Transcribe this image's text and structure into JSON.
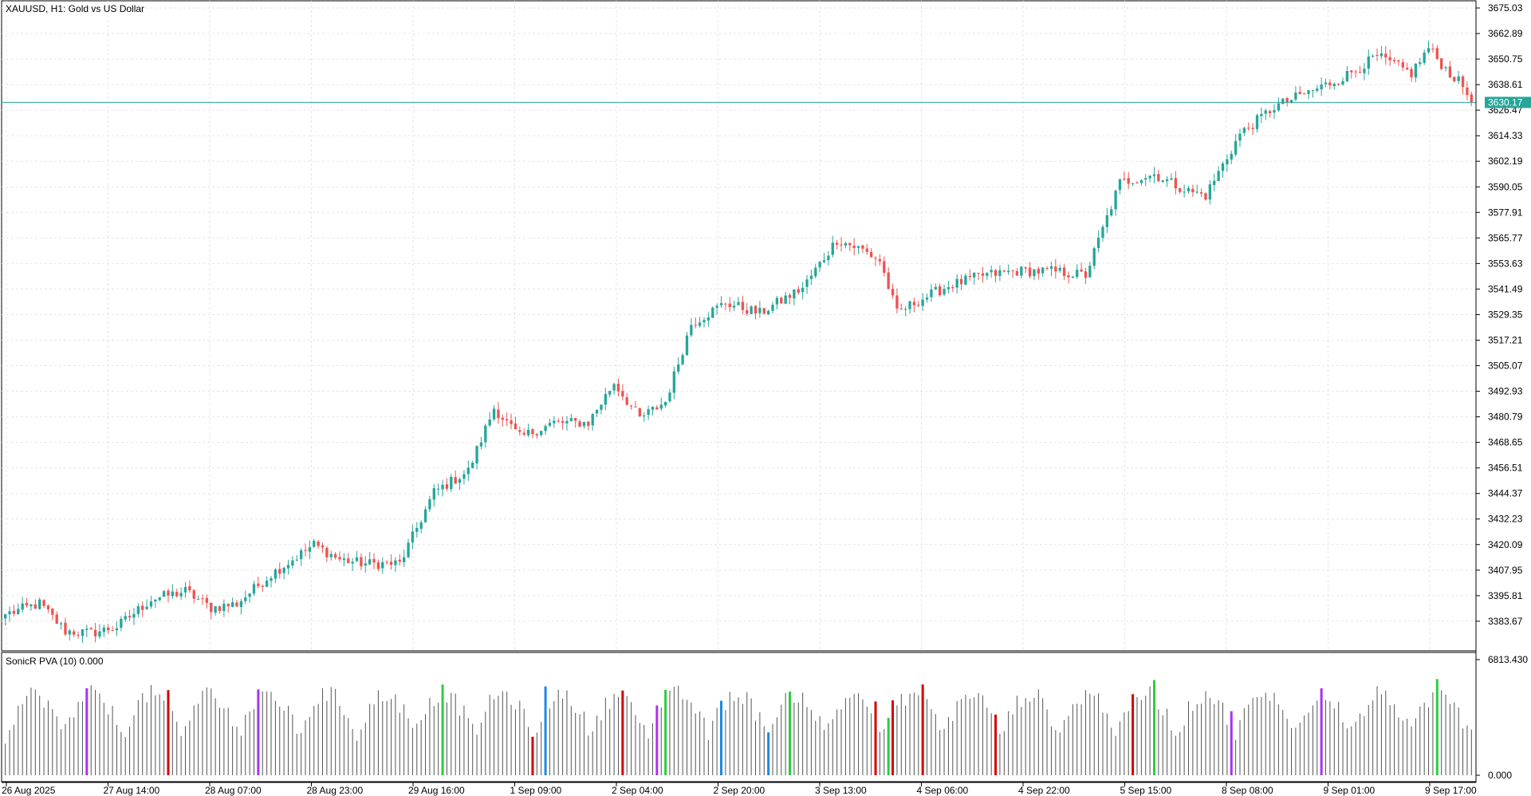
{
  "window": {
    "symbol_label": "XAUUSD, H1:  Gold vs US Dollar",
    "indicator_label": "SonicR PVA (10) 0.000"
  },
  "colors": {
    "bull": "#26a69a",
    "bear": "#ef5350",
    "grid": "#e6e6e6",
    "axis": "#000000",
    "price_line": "#26a69a",
    "vol_normal": "#555555",
    "vol_purple": "#a832f0",
    "vol_blue": "#1e88e5",
    "vol_green": "#2ecc40",
    "vol_red": "#d50000"
  },
  "price_axis": {
    "min": 3371.5,
    "max": 3675.03,
    "tick_labels": [
      "3675.03",
      "3662.89",
      "3650.75",
      "3638.61",
      "3626.47",
      "3614.33",
      "3602.19",
      "3590.05",
      "3577.91",
      "3565.77",
      "3553.63",
      "3541.49",
      "3529.35",
      "3517.21",
      "3505.07",
      "3492.93",
      "3480.79",
      "3468.65",
      "3456.51",
      "3444.37",
      "3432.23",
      "3420.09",
      "3407.95",
      "3395.81",
      "3383.67"
    ],
    "current_price_label": "3630.17",
    "current_price": 3630.17
  },
  "volume_axis": {
    "max_label": "6813.430",
    "min_label": "0.000",
    "max": 6813.43
  },
  "time_axis": {
    "labels": [
      "26 Aug 2025",
      "27 Aug 14:00",
      "28 Aug 07:00",
      "28 Aug 23:00",
      "29 Aug 16:00",
      "1 Sep 09:00",
      "2 Sep 04:00",
      "2 Sep 20:00",
      "3 Sep 13:00",
      "4 Sep 06:00",
      "4 Sep 22:00",
      "5 Sep 15:00",
      "8 Sep 08:00",
      "9 Sep 01:00",
      "9 Sep 17:00"
    ]
  },
  "chart_data": [
    {
      "type": "candlestick",
      "title": "XAUUSD, H1:  Gold vs US Dollar",
      "close_anchors": [
        [
          0,
          3387
        ],
        [
          8,
          3392
        ],
        [
          14,
          3379
        ],
        [
          20,
          3378
        ],
        [
          26,
          3381
        ],
        [
          34,
          3394
        ],
        [
          42,
          3398
        ],
        [
          48,
          3390
        ],
        [
          54,
          3392
        ],
        [
          62,
          3406
        ],
        [
          72,
          3420
        ],
        [
          78,
          3413
        ],
        [
          84,
          3411
        ],
        [
          92,
          3411
        ],
        [
          100,
          3445
        ],
        [
          108,
          3455
        ],
        [
          114,
          3485
        ],
        [
          120,
          3471
        ],
        [
          128,
          3478
        ],
        [
          136,
          3478
        ],
        [
          142,
          3497
        ],
        [
          148,
          3480
        ],
        [
          154,
          3488
        ],
        [
          160,
          3525
        ],
        [
          168,
          3535
        ],
        [
          176,
          3530
        ],
        [
          186,
          3542
        ],
        [
          194,
          3565
        ],
        [
          200,
          3560
        ],
        [
          204,
          3555
        ],
        [
          208,
          3530
        ],
        [
          212,
          3535
        ],
        [
          220,
          3543
        ],
        [
          228,
          3548
        ],
        [
          236,
          3550
        ],
        [
          244,
          3550
        ],
        [
          252,
          3548
        ],
        [
          260,
          3592
        ],
        [
          268,
          3596
        ],
        [
          276,
          3588
        ],
        [
          280,
          3586
        ],
        [
          288,
          3615
        ],
        [
          296,
          3628
        ],
        [
          304,
          3635
        ],
        [
          312,
          3642
        ],
        [
          320,
          3652
        ],
        [
          328,
          3644
        ],
        [
          332,
          3656
        ],
        [
          336,
          3646
        ],
        [
          340,
          3638
        ],
        [
          342,
          3630
        ]
      ],
      "bar_count": 343,
      "volatility": 2.6,
      "time_labels": [
        "26 Aug 2025",
        "27 Aug 14:00",
        "28 Aug 07:00",
        "28 Aug 23:00",
        "29 Aug 16:00",
        "1 Sep 09:00",
        "2 Sep 04:00",
        "2 Sep 20:00",
        "3 Sep 13:00",
        "4 Sep 06:00",
        "4 Sep 22:00",
        "5 Sep 15:00",
        "8 Sep 08:00",
        "9 Sep 01:00",
        "9 Sep 17:00"
      ],
      "ylim": [
        3371.5,
        3675.03
      ],
      "last_price": 3630.17
    },
    {
      "type": "bar",
      "title": "SonicR PVA (10) 0.000",
      "ylim": [
        0,
        6813.43
      ],
      "bar_count": 343,
      "color_classes": [
        "normal",
        "purple",
        "blue",
        "green",
        "red"
      ]
    }
  ]
}
